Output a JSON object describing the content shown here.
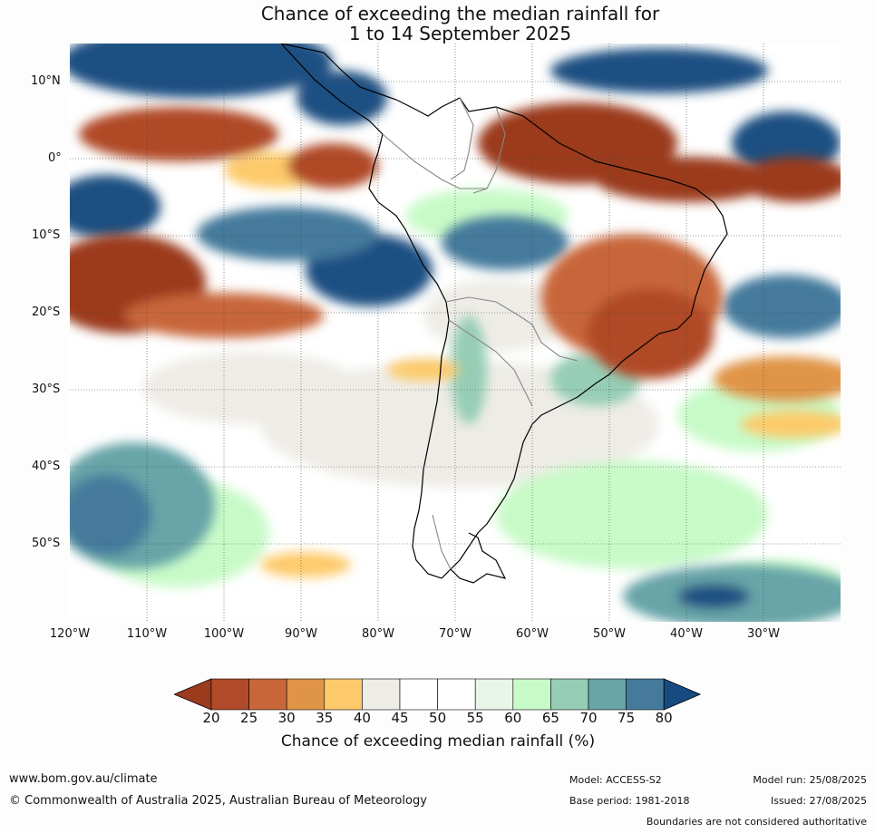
{
  "title": {
    "line1": "Chance of exceeding the median rainfall for",
    "line2": "1 to 14 September 2025"
  },
  "map": {
    "lat_labels": [
      "10°N",
      "0°",
      "10°S",
      "20°S",
      "30°S",
      "40°S",
      "50°S"
    ],
    "lon_labels": [
      "120°W",
      "110°W",
      "100°W",
      "90°W",
      "80°W",
      "70°W",
      "60°W",
      "50°W",
      "40°W",
      "30°W"
    ],
    "extent": {
      "lon": [
        -120,
        -20
      ],
      "lat": [
        -60,
        15
      ]
    },
    "gridlines": true
  },
  "legend": {
    "label": "Chance of exceeding median rainfall (%)",
    "ticks": [
      "20",
      "25",
      "30",
      "35",
      "40",
      "45",
      "50",
      "55",
      "60",
      "65",
      "70",
      "75",
      "80"
    ],
    "colors": [
      "#9b3b1e",
      "#b04a28",
      "#c8663a",
      "#e09447",
      "#fdca6b",
      "#eeece6",
      "#ffffff",
      "#ffffff",
      "#e8f5e8",
      "#c8fac8",
      "#96cdb6",
      "#68a4a8",
      "#457a9c",
      "#1d4f82"
    ],
    "under_color": "#9b3b1e",
    "over_color": "#164a80"
  },
  "footer": {
    "url": "www.bom.gov.au/climate",
    "copyright": "© Commonwealth of Australia 2025, Australian Bureau of Meteorology",
    "model": "Model: ACCESS-S2",
    "base_period": "Base period: 1981-2018",
    "model_run": "Model run: 25/08/2025",
    "issued": "Issued: 27/08/2025",
    "disclaimer": "Boundaries are not considered authoritative"
  }
}
